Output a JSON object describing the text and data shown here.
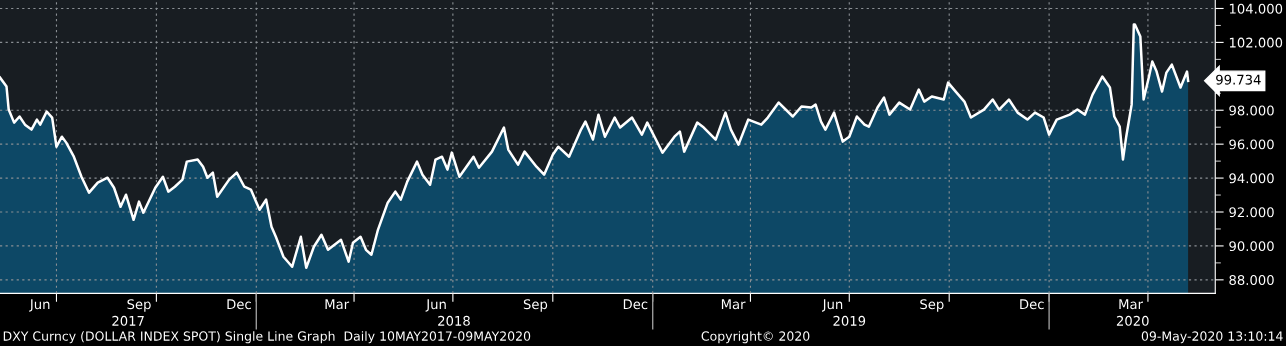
{
  "chart_data": {
    "type": "area",
    "annotations": [
      "DXY Curncy (DOLLAR INDEX SPOT) Single Line Graph  Daily 10MAY2017-09MAY2020",
      "Copyright© 2020",
      "09-May-2020 13:10:14",
      {
        "text": "99.734",
        "x": "2020-05-08",
        "y": 99.734
      }
    ],
    "x": [
      "2017-05-10",
      "2017-05-16",
      "2017-05-18",
      "2017-05-23",
      "2017-05-28",
      "2017-06-02",
      "2017-06-08",
      "2017-06-13",
      "2017-06-16",
      "2017-06-22",
      "2017-06-27",
      "2017-07-01",
      "2017-07-06",
      "2017-07-10",
      "2017-07-17",
      "2017-07-24",
      "2017-07-31",
      "2017-08-08",
      "2017-08-17",
      "2017-08-23",
      "2017-08-29",
      "2017-09-03",
      "2017-09-10",
      "2017-09-15",
      "2017-09-19",
      "2017-09-30",
      "2017-10-07",
      "2017-10-12",
      "2017-10-18",
      "2017-10-25",
      "2017-10-29",
      "2017-11-08",
      "2017-11-13",
      "2017-11-17",
      "2017-11-22",
      "2017-11-26",
      "2017-12-07",
      "2017-12-14",
      "2017-12-21",
      "2017-12-27",
      "2018-01-04",
      "2018-01-10",
      "2018-01-15",
      "2018-01-19",
      "2018-01-26",
      "2018-02-03",
      "2018-02-11",
      "2018-02-16",
      "2018-02-23",
      "2018-03-02",
      "2018-03-08",
      "2018-03-20",
      "2018-03-27",
      "2018-03-31",
      "2018-04-07",
      "2018-04-12",
      "2018-04-17",
      "2018-04-23",
      "2018-05-02",
      "2018-05-09",
      "2018-05-14",
      "2018-05-20",
      "2018-05-29",
      "2018-06-03",
      "2018-06-10",
      "2018-06-15",
      "2018-06-21",
      "2018-06-26",
      "2018-06-30",
      "2018-07-07",
      "2018-07-20",
      "2018-07-25",
      "2018-08-06",
      "2018-08-17",
      "2018-08-21",
      "2018-08-30",
      "2018-09-05",
      "2018-09-16",
      "2018-09-23",
      "2018-10-01",
      "2018-10-06",
      "2018-10-16",
      "2018-10-27",
      "2018-10-31",
      "2018-11-07",
      "2018-11-12",
      "2018-11-18",
      "2018-11-27",
      "2018-12-02",
      "2018-12-13",
      "2018-12-22",
      "2018-12-27",
      "2019-01-03",
      "2019-01-10",
      "2019-01-21",
      "2019-01-26",
      "2019-01-30",
      "2019-02-11",
      "2019-02-17",
      "2019-02-28",
      "2019-03-09",
      "2019-03-14",
      "2019-03-21",
      "2019-03-30",
      "2019-04-11",
      "2019-04-17",
      "2019-04-27",
      "2019-05-10",
      "2019-05-18",
      "2019-05-27",
      "2019-05-31",
      "2019-06-05",
      "2019-06-09",
      "2019-06-17",
      "2019-06-25",
      "2019-07-01",
      "2019-07-08",
      "2019-07-15",
      "2019-07-19",
      "2019-07-27",
      "2019-08-02",
      "2019-08-07",
      "2019-08-16",
      "2019-08-26",
      "2019-09-03",
      "2019-09-08",
      "2019-09-15",
      "2019-09-26",
      "2019-09-30",
      "2019-10-07",
      "2019-10-15",
      "2019-10-21",
      "2019-11-02",
      "2019-11-10",
      "2019-11-16",
      "2019-11-25",
      "2019-12-03",
      "2019-12-12",
      "2019-12-19",
      "2019-12-27",
      "2020-01-01",
      "2020-01-08",
      "2020-01-20",
      "2020-01-27",
      "2020-02-03",
      "2020-02-10",
      "2020-02-19",
      "2020-02-26",
      "2020-03-01",
      "2020-03-06",
      "2020-03-09",
      "2020-03-12",
      "2020-03-17",
      "2020-03-19",
      "2020-03-20",
      "2020-03-25",
      "2020-03-28",
      "2020-04-02",
      "2020-04-05",
      "2020-04-09",
      "2020-04-14",
      "2020-04-18",
      "2020-04-23",
      "2020-05-01",
      "2020-05-07",
      "2020-05-08"
    ],
    "series": [
      {
        "color": "#ffffff",
        "values": [
          99.93,
          99.4,
          98.04,
          97.27,
          97.63,
          97.15,
          96.86,
          97.45,
          97.15,
          97.92,
          97.57,
          95.85,
          96.44,
          96.09,
          95.26,
          94.08,
          93.14,
          93.73,
          94.02,
          93.43,
          92.31,
          93.02,
          91.54,
          92.61,
          91.96,
          93.43,
          94.08,
          93.2,
          93.49,
          93.91,
          94.97,
          95.09,
          94.67,
          94.02,
          94.32,
          92.9,
          93.91,
          94.32,
          93.49,
          93.32,
          92.13,
          92.73,
          91.13,
          90.54,
          89.36,
          88.77,
          90.54,
          88.71,
          89.95,
          90.66,
          89.77,
          90.36,
          89.07,
          90.19,
          90.54,
          89.77,
          89.48,
          90.95,
          92.55,
          93.2,
          92.73,
          93.79,
          94.97,
          94.2,
          93.61,
          95.09,
          95.26,
          94.5,
          95.5,
          94.08,
          95.26,
          94.61,
          95.56,
          96.98,
          95.68,
          94.79,
          95.56,
          94.67,
          94.2,
          95.38,
          95.85,
          95.26,
          96.86,
          97.33,
          96.27,
          97.74,
          96.44,
          97.57,
          96.98,
          97.57,
          96.56,
          97.27,
          96.39,
          95.5,
          96.44,
          96.74,
          95.56,
          97.27,
          96.98,
          96.27,
          97.86,
          96.86,
          95.97,
          97.45,
          97.15,
          97.57,
          98.45,
          97.63,
          98.22,
          98.16,
          98.33,
          97.33,
          96.86,
          97.86,
          96.15,
          96.44,
          97.63,
          97.15,
          97.03,
          98.16,
          98.75,
          97.74,
          98.45,
          98.04,
          99.22,
          98.51,
          98.81,
          98.63,
          99.63,
          99.1,
          98.51,
          97.57,
          98.04,
          98.63,
          98.04,
          98.63,
          97.86,
          97.45,
          97.86,
          97.57,
          96.56,
          97.45,
          97.74,
          98.04,
          97.74,
          98.92,
          99.99,
          99.34,
          97.63,
          97.03,
          95.09,
          96.44,
          98.33,
          103.06,
          103.06,
          102.35,
          98.63,
          99.99,
          100.87,
          100.28,
          99.1,
          100.22,
          100.69,
          99.34,
          100.28,
          99.734
        ]
      }
    ],
    "xlim": [
      "2017-05-10",
      "2020-06-02"
    ],
    "ylim": [
      87.2,
      104.5
    ],
    "yticks": [
      {
        "value": 88,
        "label": "88.000"
      },
      {
        "value": 89,
        "label": null
      },
      {
        "value": 90,
        "label": "90.000"
      },
      {
        "value": 91,
        "label": null
      },
      {
        "value": 92,
        "label": "92.000"
      },
      {
        "value": 93,
        "label": null
      },
      {
        "value": 94,
        "label": "94.000"
      },
      {
        "value": 95,
        "label": null
      },
      {
        "value": 96,
        "label": "96.000"
      },
      {
        "value": 97,
        "label": null
      },
      {
        "value": 98,
        "label": "98.000"
      },
      {
        "value": 99,
        "label": null
      },
      {
        "value": 100,
        "label": null
      },
      {
        "value": 101,
        "label": null
      },
      {
        "value": 102,
        "label": "102.000"
      },
      {
        "value": 103,
        "label": null
      },
      {
        "value": 104,
        "label": "104.000"
      }
    ],
    "xticks": [
      {
        "value": "2017-07-01",
        "label": null
      },
      {
        "value": "2017-10-01",
        "label": null
      },
      {
        "value": "2018-01-01",
        "label": null
      },
      {
        "value": "2018-04-01",
        "label": null
      },
      {
        "value": "2018-07-01",
        "label": null
      },
      {
        "value": "2018-10-01",
        "label": null
      },
      {
        "value": "2019-01-01",
        "label": null
      },
      {
        "value": "2019-04-01",
        "label": null
      },
      {
        "value": "2019-07-01",
        "label": null
      },
      {
        "value": "2019-10-01",
        "label": null
      },
      {
        "value": "2020-01-01",
        "label": null
      },
      {
        "value": "2020-04-01",
        "label": null
      },
      {
        "value": "2017-06-16",
        "label": "Jun"
      },
      {
        "value": "2017-09-15",
        "label": "Sep"
      },
      {
        "value": "2017-12-16",
        "label": "Dec"
      },
      {
        "value": "2018-03-16",
        "label": "Mar"
      },
      {
        "value": "2018-06-16",
        "label": "Jun"
      },
      {
        "value": "2018-09-15",
        "label": "Sep"
      },
      {
        "value": "2018-12-16",
        "label": "Dec"
      },
      {
        "value": "2019-03-16",
        "label": "Mar"
      },
      {
        "value": "2019-06-16",
        "label": "Jun"
      },
      {
        "value": "2019-09-15",
        "label": "Sep"
      },
      {
        "value": "2019-12-16",
        "label": "Dec"
      },
      {
        "value": "2020-03-16",
        "label": "Mar"
      }
    ],
    "x2lim": [
      "2017-05-10",
      "2020-06-02"
    ],
    "x2ticks": [
      {
        "value": "2017-09-05",
        "label": "2017"
      },
      {
        "value": "2018-07-02",
        "label": "2018"
      },
      {
        "value": "2019-07-01",
        "label": "2019"
      },
      {
        "value": "2020-03-18",
        "label": "2020"
      },
      {
        "value": "2018-01-01",
        "label": null
      },
      {
        "value": "2019-01-01",
        "label": null
      },
      {
        "value": "2020-01-01",
        "label": null
      }
    ],
    "grid": true
  }
}
